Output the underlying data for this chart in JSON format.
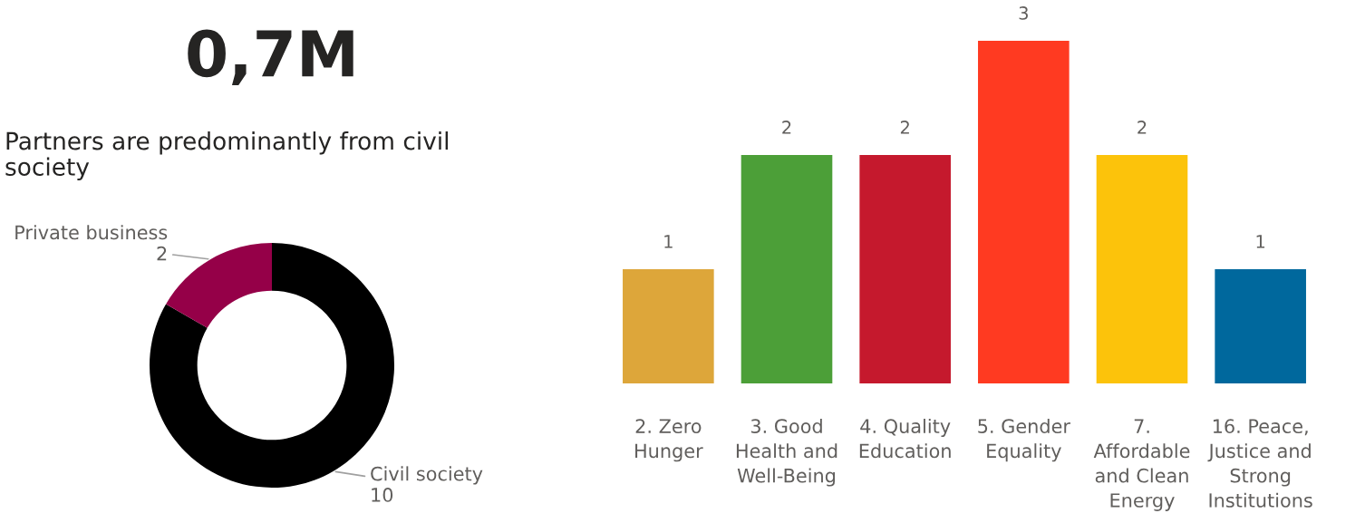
{
  "chart_data": [
    {
      "type": "other",
      "title": "0,7M"
    },
    {
      "type": "donut",
      "title": "Partners are predominantly from civil\nsociety",
      "categories": [
        "Civil society",
        "Private business"
      ],
      "values": [
        10,
        2
      ],
      "colors": [
        "#000000",
        "#950048"
      ],
      "data_labels": true
    },
    {
      "type": "bar",
      "categories": [
        "2. Zero\nHunger",
        "3. Good\nHealth and\nWell-Being",
        "4. Quality\nEducation",
        "5. Gender\nEquality",
        "7.\nAffordable\nand Clean\nEnergy",
        "16. Peace,\nJustice and\nStrong\nInstitutions"
      ],
      "values": [
        1,
        2,
        2,
        3,
        2,
        1
      ],
      "colors": [
        "#dda63a",
        "#4c9f38",
        "#c5192d",
        "#ff3a21",
        "#fcc30b",
        "#00689d"
      ],
      "ylim": [
        0,
        3
      ],
      "data_labels": true
    }
  ]
}
